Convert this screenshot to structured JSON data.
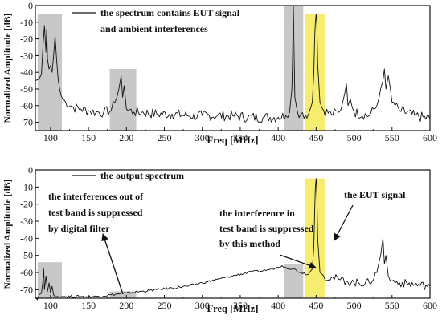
{
  "chart_data": [
    {
      "type": "line",
      "ylabel": "Normalized Amplitude [dB]",
      "xlabel": "Freq [MHz]",
      "xlim": [
        80,
        600
      ],
      "ylim": [
        -75,
        0
      ],
      "x_ticks": [
        100,
        150,
        200,
        250,
        300,
        350,
        400,
        450,
        500,
        550,
        600
      ],
      "y_ticks": [
        0,
        -10,
        -20,
        -30,
        -40,
        -50,
        -60,
        -70
      ],
      "legend": {
        "line1": "the spectrum contains EUT signal",
        "line2": "and ambient interferences"
      },
      "series": [
        {
          "x": [
            80,
            85,
            88,
            90,
            92,
            94,
            95,
            96,
            98,
            100,
            102,
            104,
            106,
            108,
            110,
            112,
            114,
            116,
            120,
            130,
            140,
            150,
            160,
            170,
            180,
            185,
            190,
            193,
            195,
            197,
            200,
            210,
            220,
            240,
            260,
            280,
            300,
            320,
            340,
            360,
            380,
            400,
            410,
            415,
            418,
            419,
            420,
            421,
            422,
            425,
            430,
            440,
            445,
            447,
            448,
            449,
            450,
            451,
            452,
            455,
            460,
            470,
            480,
            485,
            488,
            490,
            492,
            495,
            500,
            520,
            530,
            535,
            538,
            540,
            542,
            545,
            550,
            560,
            580,
            600
          ],
          "y": [
            -45,
            -44,
            -41,
            -25,
            -12,
            -28,
            -14,
            -32,
            -38,
            -36,
            -40,
            -30,
            -18,
            -32,
            -44,
            -50,
            -54,
            -56,
            -58,
            -61,
            -62,
            -63,
            -64,
            -64,
            -63,
            -58,
            -50,
            -42,
            -55,
            -48,
            -62,
            -64,
            -64,
            -65,
            -65,
            -66,
            -66,
            -66,
            -66,
            -67,
            -67,
            -67,
            -66,
            -64,
            -50,
            -30,
            0,
            -30,
            -55,
            -63,
            -65,
            -65,
            -58,
            -40,
            -20,
            -10,
            -5,
            -12,
            -35,
            -58,
            -63,
            -65,
            -64,
            -58,
            -52,
            -47,
            -60,
            -56,
            -64,
            -66,
            -60,
            -50,
            -45,
            -38,
            -50,
            -42,
            -58,
            -63,
            -66,
            -68
          ]
        }
      ],
      "highlight_bands": [
        {
          "from": 83,
          "to": 115,
          "color": "#c8c8c8"
        },
        {
          "from": 178,
          "to": 213,
          "color": "#c8c8c8"
        },
        {
          "from": 408,
          "to": 433,
          "color": "#c8c8c8"
        },
        {
          "from": 435,
          "to": 462,
          "color": "#f5ec70"
        }
      ]
    },
    {
      "type": "line",
      "ylabel": "Normalized Amplitude [dB]",
      "xlabel": "Freq [MHz]",
      "xlim": [
        80,
        600
      ],
      "ylim": [
        -75,
        0
      ],
      "x_ticks": [
        100,
        150,
        200,
        250,
        300,
        350,
        400,
        450,
        500,
        550,
        600
      ],
      "y_ticks": [
        0,
        -10,
        -20,
        -30,
        -40,
        -50,
        -60,
        -70
      ],
      "legend": {
        "line1": "the output spectrum"
      },
      "annotations": {
        "out_of_band": [
          "the interferences out of",
          "test band is suppressed",
          "by digital filter"
        ],
        "in_band": [
          "the interference in",
          "test band is suppressed",
          "by this method"
        ],
        "eut": [
          "the EUT signal"
        ]
      },
      "series": [
        {
          "x": [
            80,
            85,
            88,
            90,
            91,
            92,
            94,
            96,
            98,
            100,
            102,
            104,
            106,
            108,
            110,
            115,
            120,
            140,
            160,
            180,
            200,
            220,
            240,
            260,
            280,
            300,
            320,
            340,
            360,
            380,
            390,
            400,
            405,
            410,
            420,
            430,
            440,
            445,
            447,
            448,
            449,
            450,
            451,
            452,
            455,
            460,
            470,
            480,
            490,
            500,
            520,
            530,
            535,
            538,
            540,
            542,
            545,
            550,
            560,
            580,
            600
          ],
          "y": [
            -74,
            -73,
            -72,
            -65,
            -58,
            -70,
            -62,
            -71,
            -66,
            -72,
            -68,
            -73,
            -74,
            -74,
            -74,
            -74,
            -74,
            -74,
            -74,
            -73,
            -72,
            -71,
            -70,
            -69,
            -68,
            -66,
            -64,
            -62,
            -60,
            -59,
            -58,
            -57,
            -56,
            -57,
            -58,
            -60,
            -61,
            -58,
            -45,
            -25,
            -10,
            -5,
            -15,
            -40,
            -60,
            -62,
            -63,
            -64,
            -65,
            -66,
            -66,
            -60,
            -50,
            -40,
            -55,
            -50,
            -62,
            -65,
            -66,
            -67,
            -68
          ]
        }
      ],
      "highlight_bands": [
        {
          "from": 83,
          "to": 115,
          "color": "#c8c8c8"
        },
        {
          "from": 178,
          "to": 213,
          "color": "#c8c8c8"
        },
        {
          "from": 408,
          "to": 433,
          "color": "#c8c8c8"
        },
        {
          "from": 435,
          "to": 462,
          "color": "#f5ec70"
        }
      ]
    }
  ]
}
